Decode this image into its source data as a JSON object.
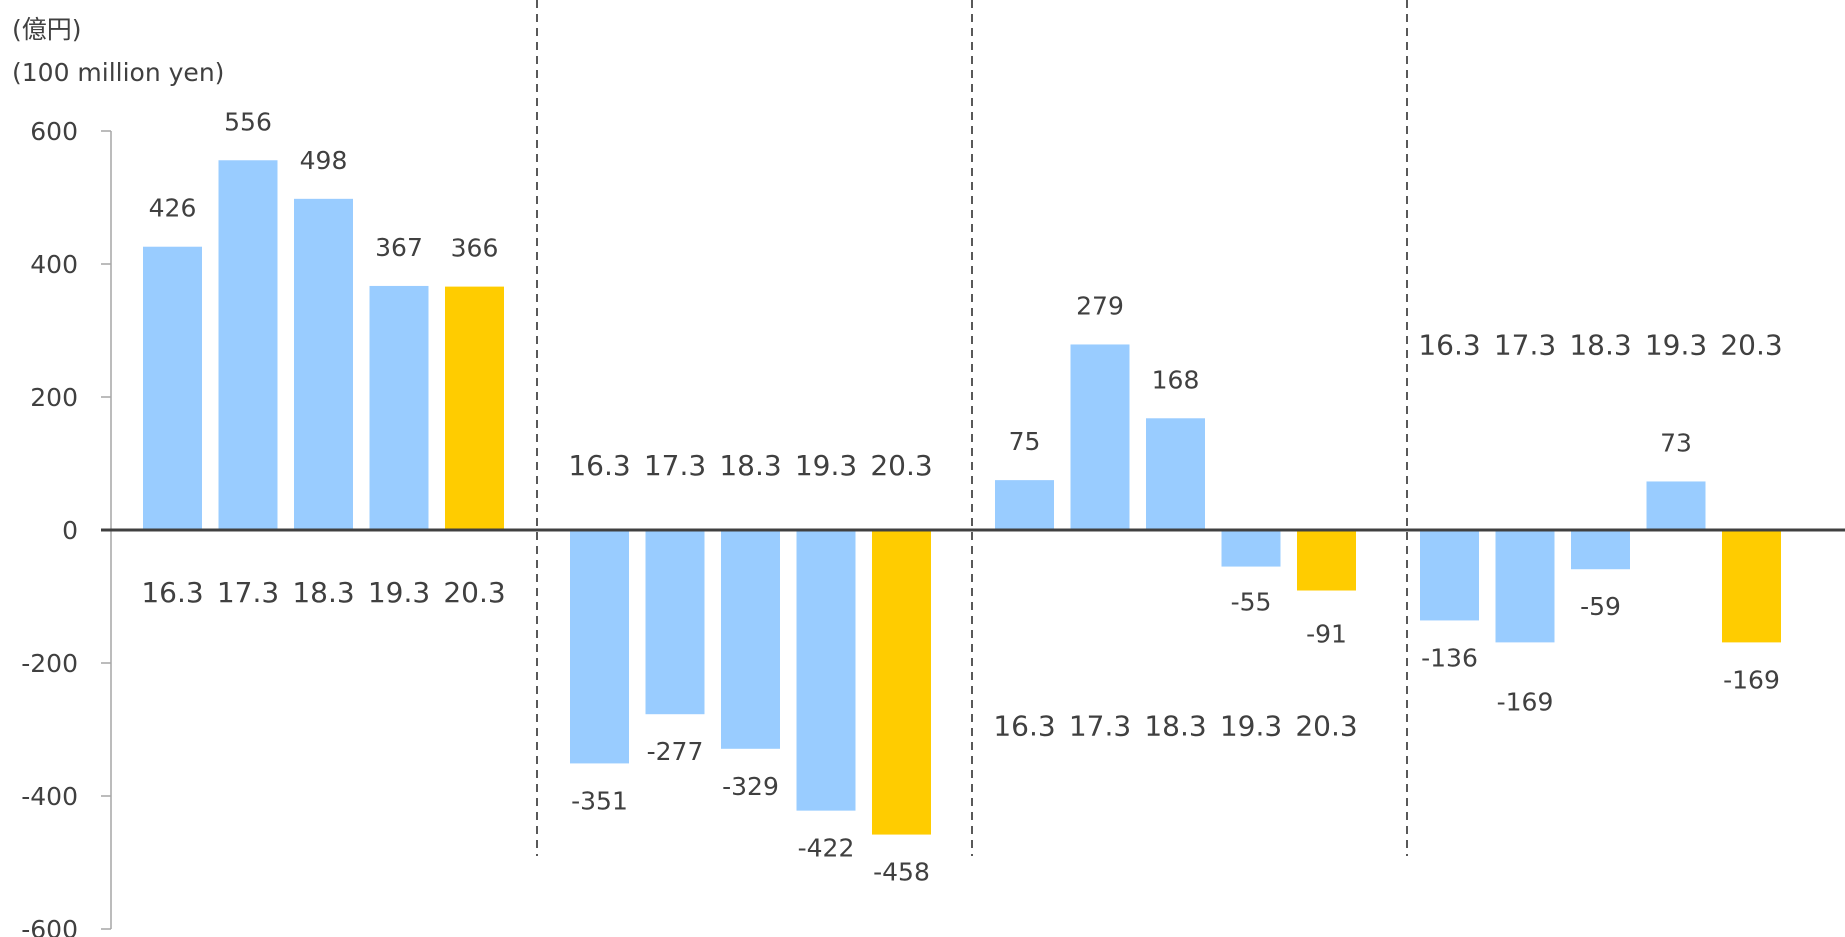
{
  "chart_data": {
    "type": "bar",
    "unit_label_jp": "(億円)",
    "unit_label_en": "(100 million yen)",
    "ylim": [
      -600,
      600
    ],
    "yticks": [
      600,
      400,
      200,
      0,
      -200,
      -400,
      -600
    ],
    "grid": false,
    "colors": {
      "past": "#99CCFF",
      "latest": "#FFCC00",
      "axis": "#404040",
      "divider": "#595959"
    },
    "groups": [
      {
        "categories": [
          "16.3",
          "17.3",
          "18.3",
          "19.3",
          "20.3"
        ],
        "values": [
          426,
          556,
          498,
          367,
          366
        ]
      },
      {
        "categories": [
          "16.3",
          "17.3",
          "18.3",
          "19.3",
          "20.3"
        ],
        "values": [
          -351,
          -277,
          -329,
          -422,
          -458
        ]
      },
      {
        "categories": [
          "16.3",
          "17.3",
          "18.3",
          "19.3",
          "20.3"
        ],
        "values": [
          75,
          279,
          168,
          -55,
          -91
        ]
      },
      {
        "categories": [
          "16.3",
          "17.3",
          "18.3",
          "19.3",
          "20.3"
        ],
        "values": [
          -136,
          -169,
          -59,
          73,
          -169
        ]
      }
    ]
  }
}
